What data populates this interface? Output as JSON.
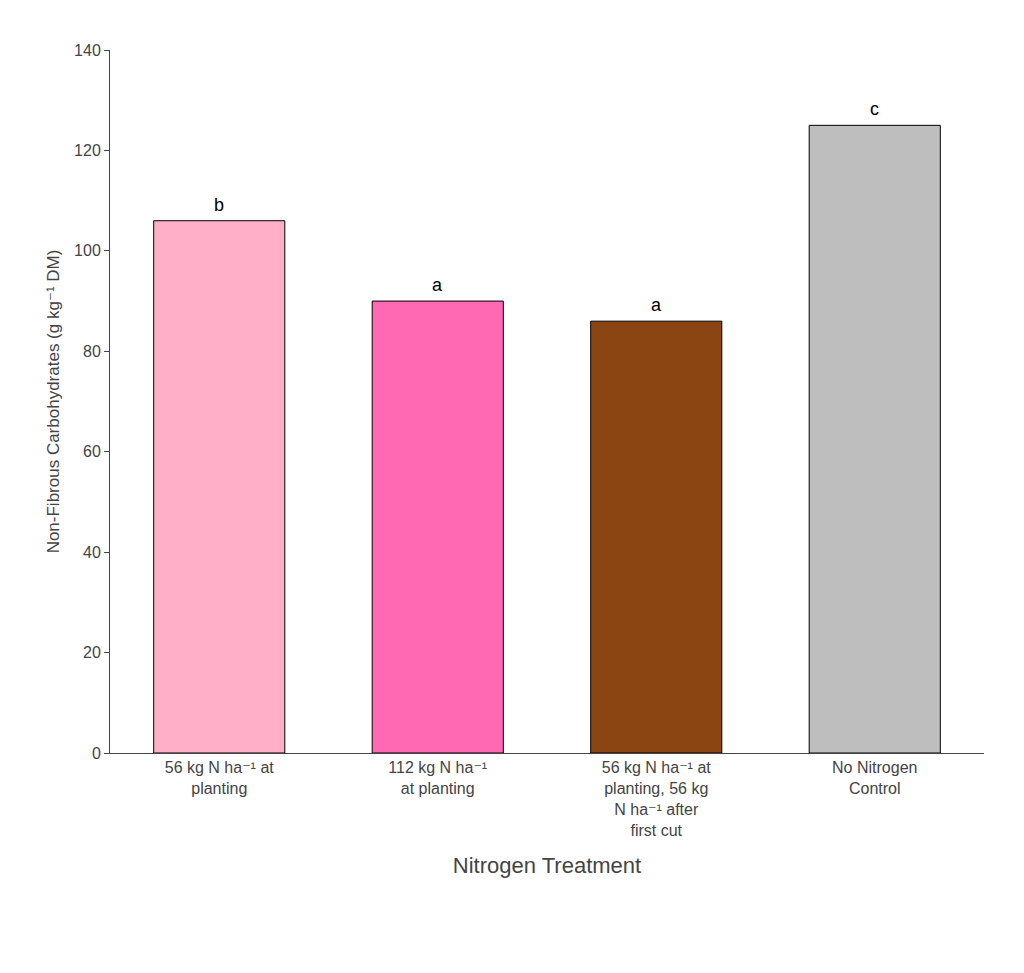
{
  "chart_data": {
    "type": "bar",
    "categories": [
      "56 kg N ha⁻¹ at\nplanting",
      "112 kg N ha⁻¹\nat planting",
      "56 kg N ha⁻¹ at\nplanting, 56 kg\nN ha⁻¹ after\nfirst cut",
      "No Nitrogen\nControl"
    ],
    "values": [
      106,
      90,
      86,
      125
    ],
    "colors": [
      "#FFB0C8",
      "#FF69B4",
      "#8B4513",
      "#BEBEBE"
    ],
    "annotations": [
      "b",
      "a",
      "a",
      "c"
    ],
    "xlabel": "Nitrogen Treatment",
    "ylabel": "Non-Fibrous Carbohydrates (g kg⁻¹ DM)",
    "ylim": [
      0,
      140
    ],
    "yticks": [
      0,
      20,
      40,
      60,
      80,
      100,
      120,
      140
    ],
    "grid": false
  }
}
